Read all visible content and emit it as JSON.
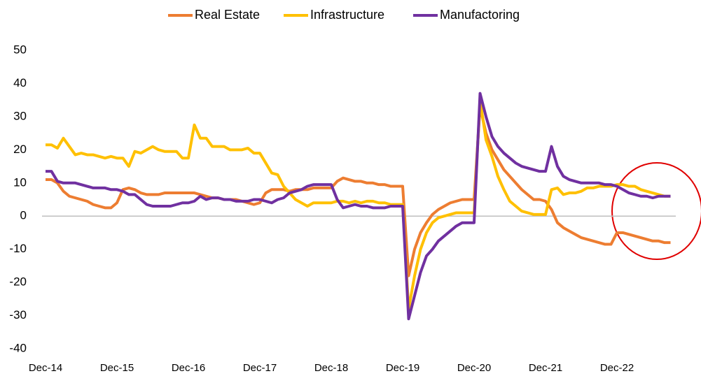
{
  "chart_data": {
    "type": "line",
    "categories": [
      "Dec-14",
      null,
      null,
      null,
      null,
      null,
      null,
      null,
      null,
      null,
      null,
      null,
      "Dec-15",
      null,
      null,
      null,
      null,
      null,
      null,
      null,
      null,
      null,
      null,
      null,
      "Dec-16",
      null,
      null,
      null,
      null,
      null,
      null,
      null,
      null,
      null,
      null,
      null,
      "Dec-17",
      null,
      null,
      null,
      null,
      null,
      null,
      null,
      null,
      null,
      null,
      null,
      "Dec-18",
      null,
      null,
      null,
      null,
      null,
      null,
      null,
      null,
      null,
      null,
      null,
      "Dec-19",
      null,
      null,
      null,
      null,
      null,
      null,
      null,
      null,
      null,
      null,
      null,
      "Dec-20",
      null,
      null,
      null,
      null,
      null,
      null,
      null,
      null,
      null,
      null,
      null,
      "Dec-21",
      null,
      null,
      null,
      null,
      null,
      null,
      null,
      null,
      null,
      null,
      null,
      "Dec-22",
      null,
      null,
      null,
      null,
      null,
      null,
      null,
      null,
      null
    ],
    "series": [
      {
        "name": "Real Estate",
        "color": "#ed7d31",
        "values": [
          11,
          11,
          10,
          7.5,
          6,
          5.5,
          5,
          4.5,
          3.5,
          3,
          2.5,
          2.5,
          4,
          8,
          8.5,
          8,
          7,
          6.5,
          6.5,
          6.5,
          7,
          7,
          7,
          7,
          7,
          7,
          6.5,
          6,
          5.5,
          5.5,
          5,
          5,
          5,
          4.5,
          4,
          3.5,
          4,
          7,
          8,
          8,
          8,
          7.5,
          8,
          8,
          8,
          8.5,
          8.5,
          8.5,
          8.5,
          10.5,
          11.5,
          11,
          10.5,
          10.5,
          10,
          10,
          9.5,
          9.5,
          9,
          9,
          9,
          -18,
          -10,
          -5,
          -2,
          0.5,
          2,
          3,
          4,
          4.5,
          5,
          5,
          5,
          33,
          25,
          20,
          17,
          14,
          12,
          10,
          8,
          6.5,
          5,
          5,
          4.5,
          2,
          -2,
          -3.5,
          -4.5,
          -5.5,
          -6.5,
          -7,
          -7.5,
          -8,
          -8.5,
          -8.5,
          -5,
          -5,
          -5.5,
          -6,
          -6.5,
          -7,
          -7.5,
          -7.5,
          -8,
          -8
        ]
      },
      {
        "name": "Infrastructure",
        "color": "#ffc000",
        "values": [
          21.5,
          21.5,
          20.5,
          23.5,
          21,
          18.5,
          19,
          18.5,
          18.5,
          18,
          17.5,
          18,
          17.5,
          17.5,
          15,
          19.5,
          19,
          20,
          21,
          20,
          19.5,
          19.5,
          19.5,
          17.5,
          17.5,
          27.5,
          23.5,
          23.5,
          21,
          21,
          21,
          20,
          20,
          20,
          20.5,
          19,
          19,
          16,
          13,
          12.5,
          9,
          7,
          5,
          4,
          3,
          4,
          4,
          4,
          4,
          4.5,
          4.5,
          4,
          4.5,
          4,
          4.5,
          4.5,
          4,
          4,
          3.5,
          3.5,
          3.5,
          -28,
          -18,
          -10,
          -5,
          -2,
          -0.5,
          0,
          0.5,
          1,
          1,
          1,
          1,
          35,
          23,
          18,
          12,
          8,
          4.5,
          3,
          1.5,
          1,
          0.5,
          0.5,
          0.5,
          8,
          8.5,
          6.5,
          7,
          7,
          7.5,
          8.5,
          8.5,
          9,
          9,
          9,
          9.5,
          9.5,
          9,
          9,
          8,
          7.5,
          7,
          6.5,
          6,
          6
        ]
      },
      {
        "name": "Manufactoring",
        "color": "#7030a0",
        "values": [
          13.5,
          13.5,
          10.5,
          10,
          10,
          10,
          9.5,
          9,
          8.5,
          8.5,
          8.5,
          8,
          8,
          7.5,
          6.5,
          6.5,
          5,
          3.5,
          3,
          3,
          3,
          3,
          3.5,
          4,
          4,
          4.5,
          6,
          5,
          5.5,
          5.5,
          5,
          5,
          4.5,
          4.5,
          4.5,
          5,
          5,
          4.5,
          4,
          5,
          5.5,
          7,
          7.5,
          8,
          9,
          9.5,
          9.5,
          9.5,
          9.5,
          5,
          2.5,
          3,
          3.5,
          3,
          3,
          2.5,
          2.5,
          2.5,
          3,
          3,
          3,
          -31,
          -24,
          -17,
          -12,
          -10,
          -7.5,
          -6,
          -4.5,
          -3,
          -2,
          -2,
          -2,
          37,
          30,
          24,
          21,
          19,
          17.5,
          16,
          15,
          14.5,
          14,
          13.5,
          13.5,
          21,
          15,
          12,
          11,
          10.5,
          10,
          10,
          10,
          10,
          9.5,
          9.5,
          9,
          8,
          7,
          6.5,
          6,
          6,
          5.5,
          6,
          6,
          6
        ]
      }
    ],
    "ylim": [
      -40,
      50
    ],
    "yticks": [
      -40,
      -30,
      -20,
      -10,
      0,
      10,
      20,
      30,
      40,
      50
    ],
    "grid": false,
    "legend": "top"
  }
}
